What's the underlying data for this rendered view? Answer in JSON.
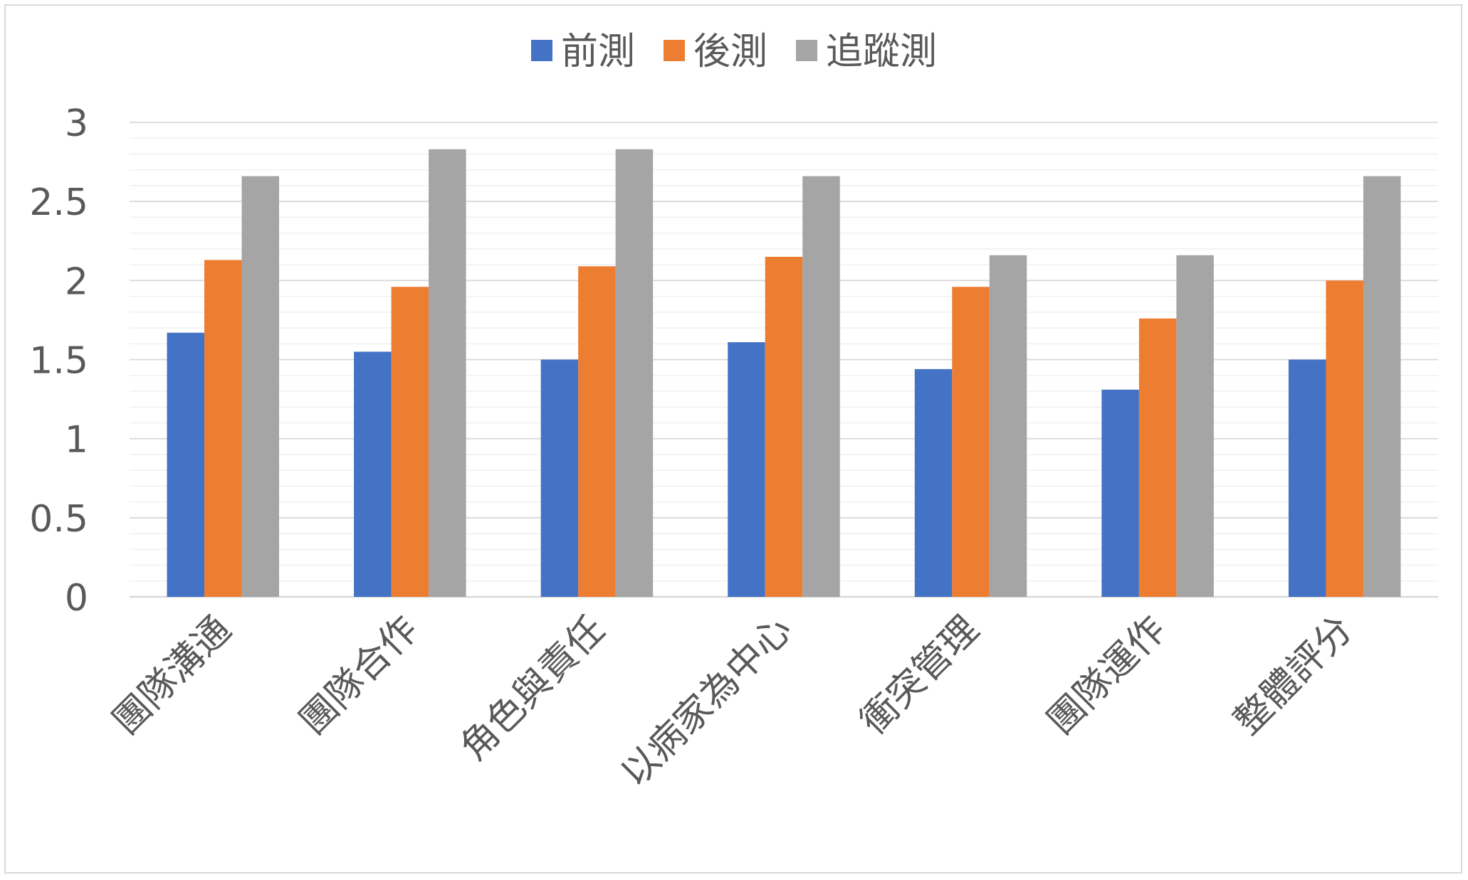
{
  "chart_data": {
    "type": "bar",
    "title": "",
    "xlabel": "",
    "ylabel": "",
    "ylim": [
      0,
      3
    ],
    "yticks": [
      "0",
      "0.5",
      "1",
      "1.5",
      "2",
      "2.5",
      "3"
    ],
    "ytick_values": [
      0,
      0.5,
      1,
      1.5,
      2,
      2.5,
      3
    ],
    "minor_grid_step": 0.1,
    "grid": true,
    "legend_position": "top",
    "categories": [
      "團隊溝通",
      "團隊合作",
      "角色與責任",
      "以病家為中心",
      "衝突管理",
      "團隊運作",
      "整體評分"
    ],
    "series": [
      {
        "name": "前測",
        "color": "#4472C4",
        "values": [
          1.67,
          1.55,
          1.5,
          1.61,
          1.44,
          1.31,
          1.5
        ]
      },
      {
        "name": "後測",
        "color": "#ED7D31",
        "values": [
          2.13,
          1.96,
          2.09,
          2.15,
          1.96,
          1.76,
          2.0
        ]
      },
      {
        "name": "追蹤測",
        "color": "#A5A5A5",
        "values": [
          2.66,
          2.83,
          2.83,
          2.66,
          2.16,
          2.16,
          2.66
        ]
      }
    ]
  }
}
